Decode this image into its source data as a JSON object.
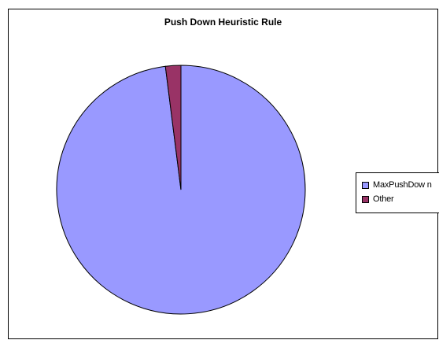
{
  "chart_data": {
    "type": "pie",
    "title": "Push Down Heuristic Rule",
    "slices": [
      {
        "label": "MaxPushDown",
        "legend_text": "MaxPushDow n",
        "value": 98,
        "color": "#9999FF"
      },
      {
        "label": "Other",
        "legend_text": "Other",
        "value": 2,
        "color": "#993366"
      }
    ],
    "legend_position": "right"
  }
}
